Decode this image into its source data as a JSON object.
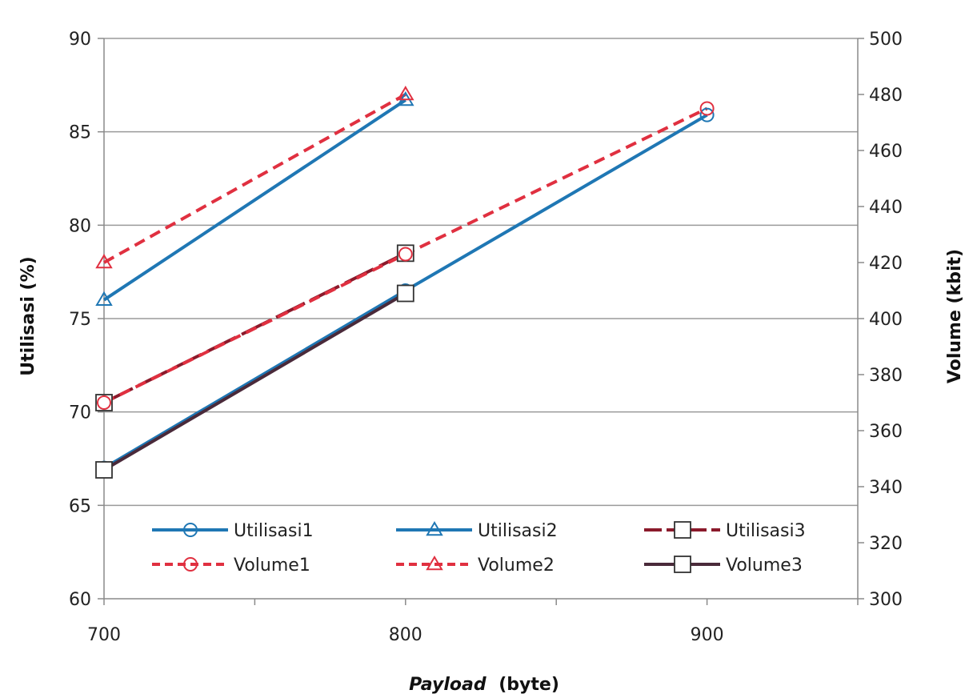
{
  "chart_data": {
    "type": "line",
    "xlabel_italic": "Payload",
    "xlabel_unit": "(byte)",
    "ylabel": "Utilisasi  (%)",
    "y2label": "Volume (kbit)",
    "x_ticks": [
      "700",
      "800",
      "900"
    ],
    "xlim": [
      700,
      950
    ],
    "ylim": [
      60,
      90
    ],
    "y_ticks": [
      "60",
      "65",
      "70",
      "75",
      "80",
      "85",
      "90"
    ],
    "y2lim": [
      300,
      500
    ],
    "y2_ticks": [
      "300",
      "320",
      "340",
      "360",
      "380",
      "400",
      "420",
      "440",
      "460",
      "480",
      "500"
    ],
    "grid": true,
    "legend_position": "bottom-inside",
    "series": [
      {
        "name": "Utilisasi1",
        "axis": "left",
        "color": "#1f77b4",
        "dash": "solid",
        "marker": "circle",
        "x": [
          700,
          800,
          900
        ],
        "y": [
          67.0,
          76.5,
          85.9
        ]
      },
      {
        "name": "Utilisasi2",
        "axis": "left",
        "color": "#1f77b4",
        "dash": "solid",
        "marker": "triangle",
        "x": [
          700,
          800
        ],
        "y": [
          76.0,
          86.7
        ]
      },
      {
        "name": "Utilisasi3",
        "axis": "left",
        "color": "#8b1a2b",
        "dash": "longdash",
        "marker": "square",
        "x": [
          700,
          800
        ],
        "y": [
          70.5,
          78.5
        ]
      },
      {
        "name": "Volume1",
        "axis": "right",
        "color": "#e03040",
        "dash": "dash",
        "marker": "circle",
        "x": [
          700,
          800,
          900
        ],
        "y": [
          370,
          423,
          475
        ]
      },
      {
        "name": "Volume2",
        "axis": "right",
        "color": "#e03040",
        "dash": "dash",
        "marker": "triangle",
        "x": [
          700,
          800
        ],
        "y": [
          420,
          480
        ]
      },
      {
        "name": "Volume3",
        "axis": "right",
        "color": "#4a2a3a",
        "dash": "solid",
        "marker": "square",
        "x": [
          700,
          800
        ],
        "y": [
          346,
          409
        ]
      }
    ]
  }
}
